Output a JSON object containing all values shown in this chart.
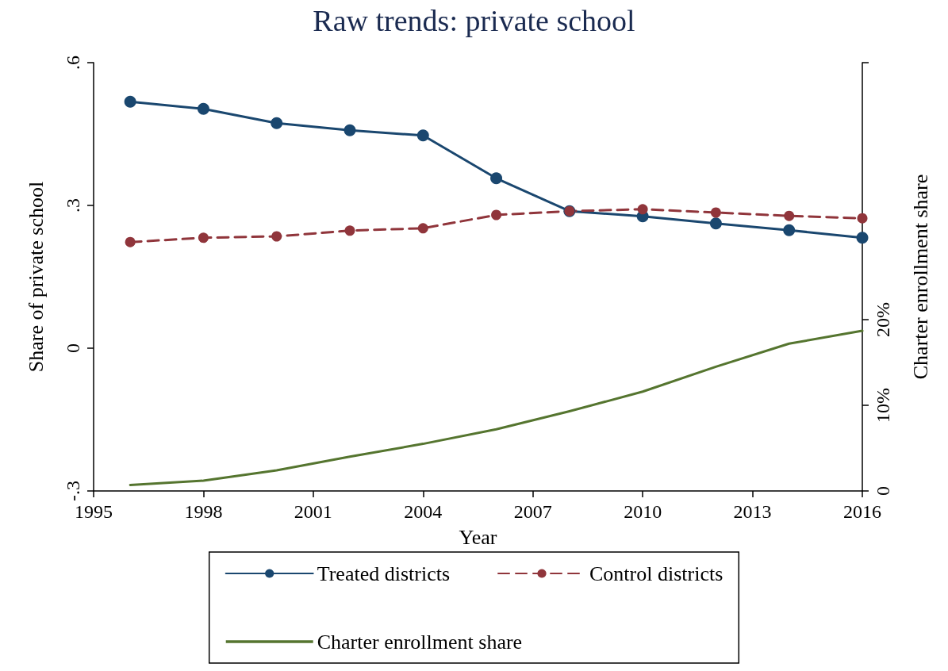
{
  "chart_data": {
    "type": "line",
    "title": "Raw trends: private school",
    "xlabel": "Year",
    "ylabel": "Share of private school",
    "y2label": "Charter enrollment share",
    "x": [
      1996,
      1998,
      2000,
      2002,
      2004,
      2006,
      2008,
      2010,
      2012,
      2014,
      2016
    ],
    "xlim": [
      1995,
      2016
    ],
    "xticks": [
      1995,
      1998,
      2001,
      2004,
      2007,
      2010,
      2013,
      2016
    ],
    "ylim": [
      -0.3,
      0.6
    ],
    "yticks": [
      {
        "value": -0.3,
        "label": "-.3"
      },
      {
        "value": 0,
        "label": "0"
      },
      {
        "value": 0.3,
        "label": ".3"
      },
      {
        "value": 0.6,
        "label": ".6"
      }
    ],
    "y2lim": [
      0,
      50
    ],
    "y2ticks": [
      0,
      {
        "value": 10,
        "label": "10%"
      },
      {
        "value": 20,
        "label": "20%"
      },
      {
        "value": 50,
        "label": null
      }
    ],
    "legend": "bottom",
    "series": [
      {
        "name": "Treated districts",
        "color": "#1a476f",
        "marker": "circle",
        "line_style": "solid",
        "values": [
          0.518,
          0.503,
          0.473,
          0.458,
          0.447,
          0.357,
          0.288,
          0.277,
          0.262,
          0.248,
          0.232
        ]
      },
      {
        "name": "Control districts",
        "color": "#90353b",
        "marker": "circle",
        "line_style": "dashed",
        "values": [
          0.223,
          0.232,
          0.235,
          0.247,
          0.252,
          0.28,
          0.288,
          0.292,
          0.285,
          0.278,
          0.273
        ]
      },
      {
        "name": "Charter enrollment share",
        "color": "#55752f",
        "marker": "none",
        "line_style": "solid",
        "axis": "y2",
        "values": [
          0.7,
          1.2,
          2.4,
          4.0,
          5.5,
          7.2,
          9.3,
          11.6,
          14.5,
          17.2,
          18.7
        ]
      }
    ]
  }
}
